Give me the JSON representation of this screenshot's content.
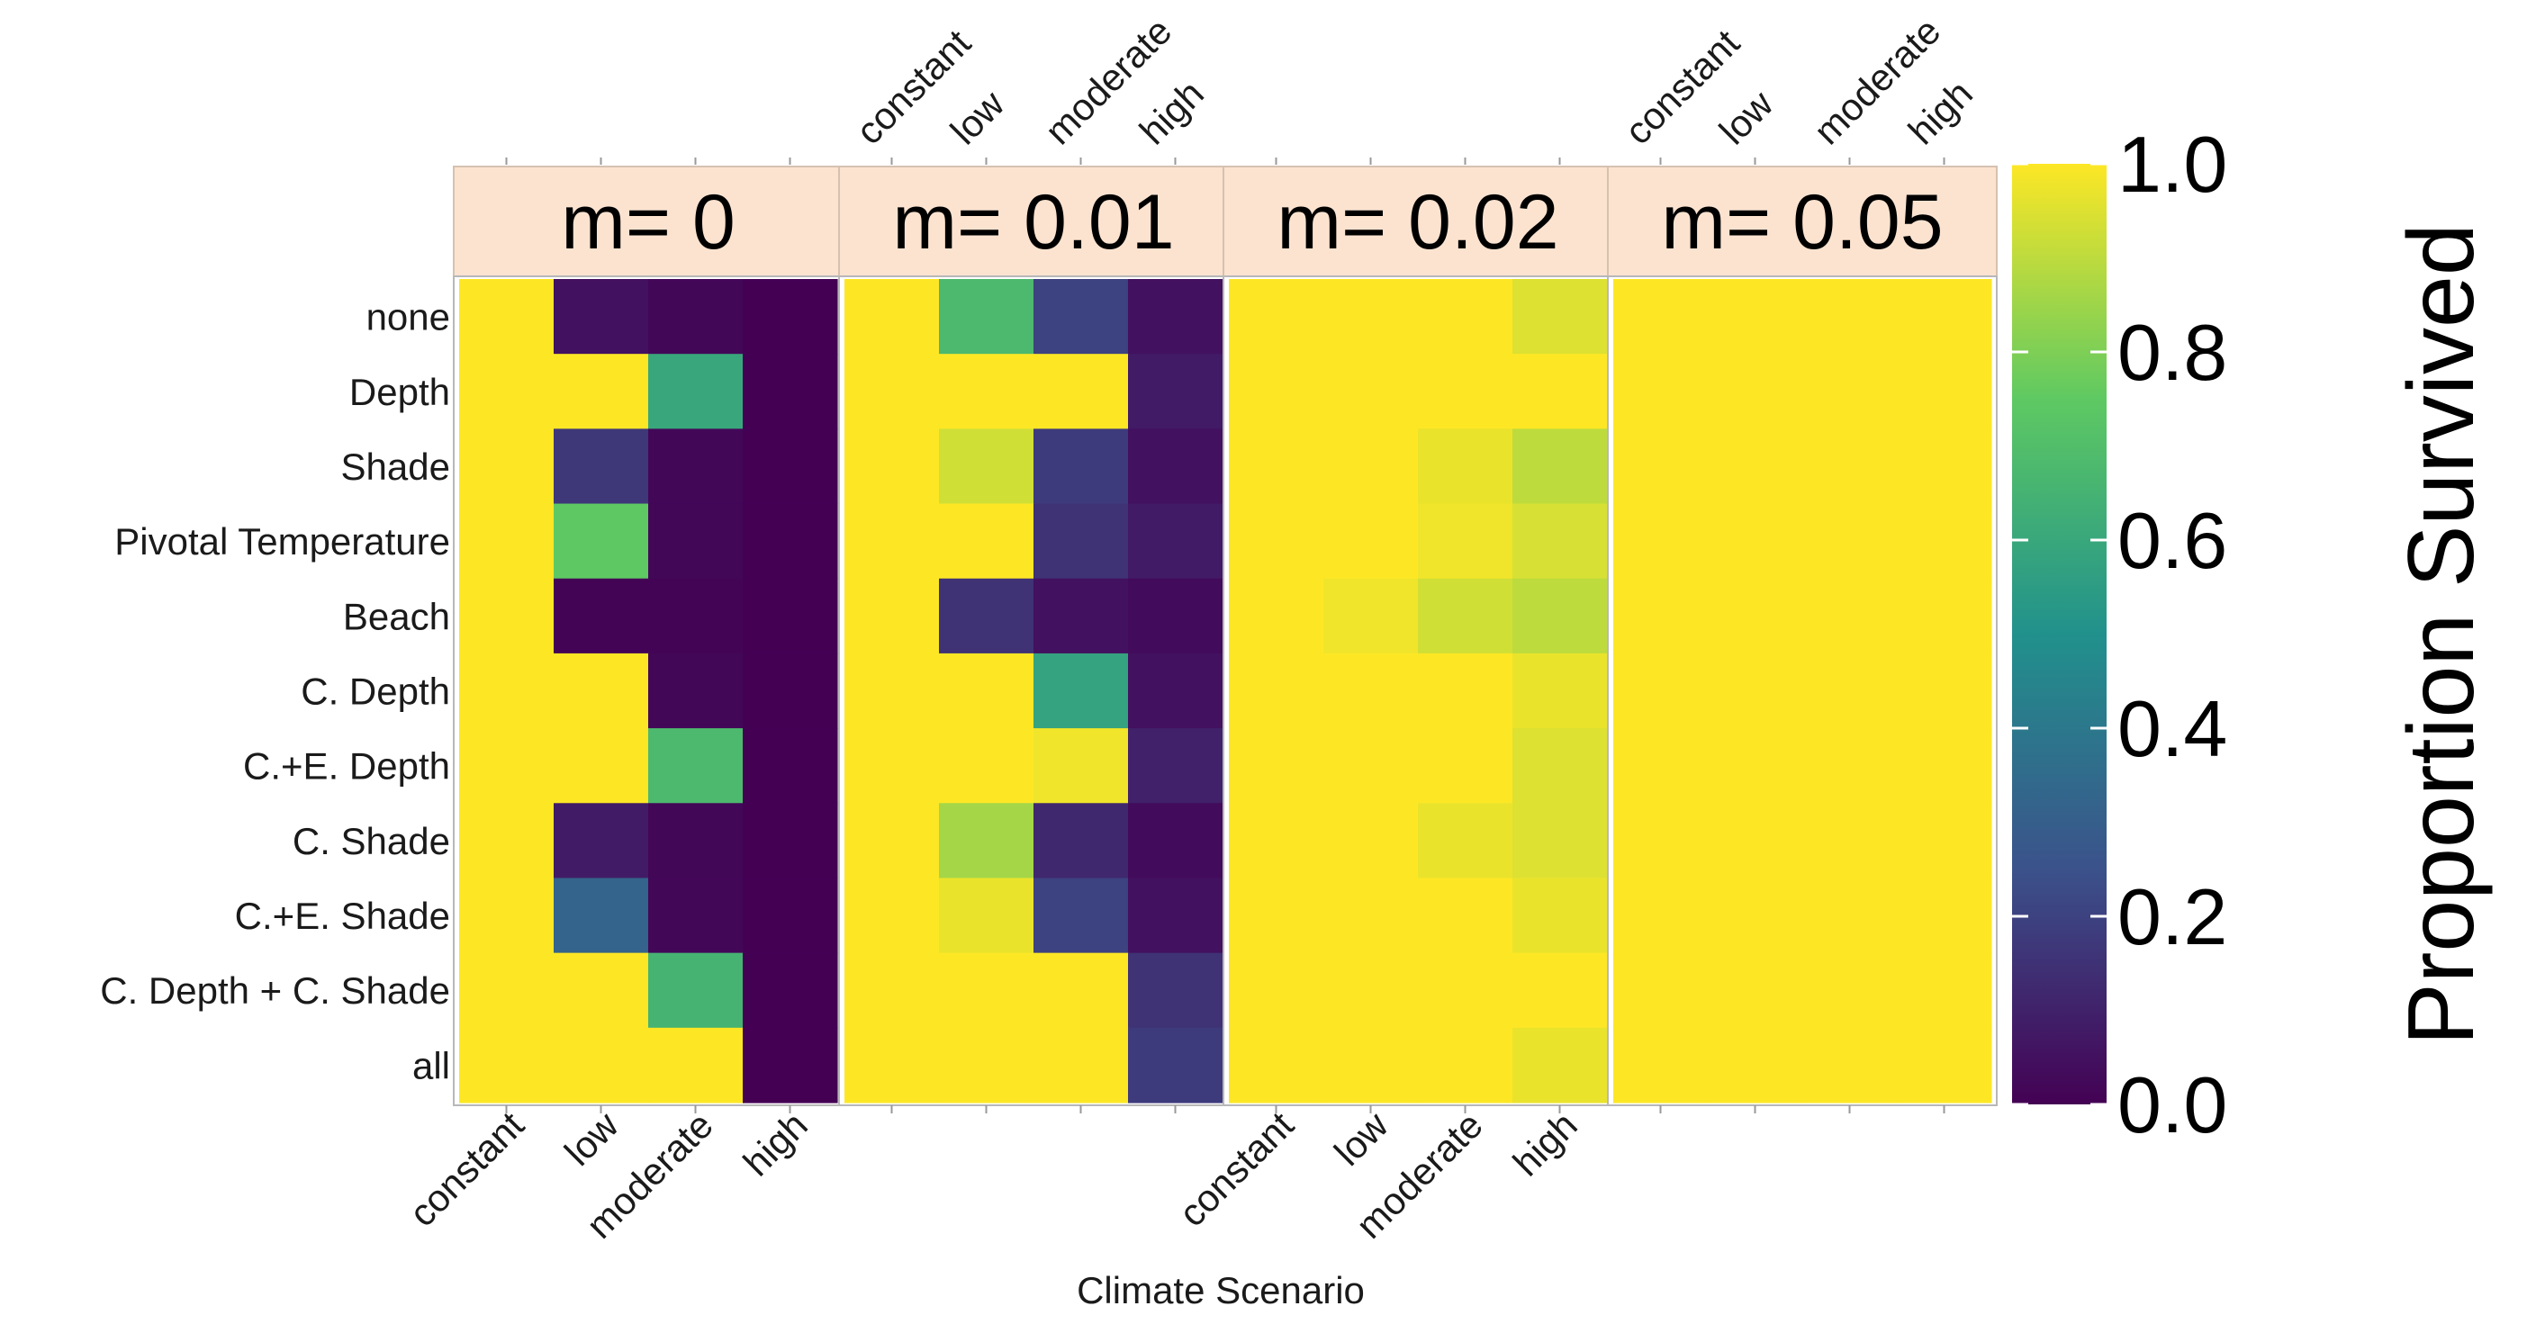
{
  "chart_data": {
    "type": "heatmap",
    "title": "",
    "xlabel": "Climate Scenario",
    "legend_title": "Proportion Survived",
    "legend_ticks": [
      "0.0",
      "0.2",
      "0.4",
      "0.6",
      "0.8",
      "1.0"
    ],
    "value_range": [
      0,
      1
    ],
    "colormap": "viridis",
    "columns": [
      "constant",
      "low",
      "moderate",
      "high"
    ],
    "rows": [
      "none",
      "Depth",
      "Shade",
      "Pivotal Temperature",
      "Beach",
      "C. Depth",
      "C.+E. Depth",
      "C. Shade",
      "C.+E. Shade",
      "C. Depth + C. Shade",
      "all"
    ],
    "facets": [
      {
        "label": "m= 0",
        "values": [
          [
            1.0,
            0.05,
            0.02,
            0.0
          ],
          [
            1.0,
            1.0,
            0.6,
            0.0
          ],
          [
            1.0,
            0.17,
            0.02,
            0.0
          ],
          [
            1.0,
            0.75,
            0.02,
            0.0
          ],
          [
            1.0,
            0.01,
            0.01,
            0.0
          ],
          [
            1.0,
            1.0,
            0.02,
            0.0
          ],
          [
            1.0,
            1.0,
            0.68,
            0.0
          ],
          [
            1.0,
            0.08,
            0.02,
            0.0
          ],
          [
            1.0,
            0.32,
            0.02,
            0.0
          ],
          [
            1.0,
            1.0,
            0.65,
            0.0
          ],
          [
            1.0,
            1.0,
            1.0,
            0.0
          ]
        ]
      },
      {
        "label": "m= 0.01",
        "values": [
          [
            1.0,
            0.68,
            0.2,
            0.05
          ],
          [
            1.0,
            1.0,
            1.0,
            0.08
          ],
          [
            1.0,
            0.93,
            0.18,
            0.05
          ],
          [
            1.0,
            1.0,
            0.15,
            0.08
          ],
          [
            1.0,
            0.15,
            0.05,
            0.03
          ],
          [
            1.0,
            1.0,
            0.58,
            0.05
          ],
          [
            1.0,
            1.0,
            0.98,
            0.1
          ],
          [
            1.0,
            0.86,
            0.12,
            0.03
          ],
          [
            1.0,
            0.97,
            0.2,
            0.05
          ],
          [
            1.0,
            1.0,
            1.0,
            0.15
          ],
          [
            1.0,
            1.0,
            1.0,
            0.18
          ]
        ]
      },
      {
        "label": "m= 0.02",
        "values": [
          [
            1.0,
            1.0,
            1.0,
            0.95
          ],
          [
            1.0,
            1.0,
            1.0,
            1.0
          ],
          [
            1.0,
            1.0,
            0.97,
            0.9
          ],
          [
            1.0,
            1.0,
            0.98,
            0.94
          ],
          [
            1.0,
            0.98,
            0.93,
            0.9
          ],
          [
            1.0,
            1.0,
            1.0,
            0.97
          ],
          [
            1.0,
            1.0,
            1.0,
            0.95
          ],
          [
            1.0,
            1.0,
            0.97,
            0.95
          ],
          [
            1.0,
            1.0,
            1.0,
            0.97
          ],
          [
            1.0,
            1.0,
            1.0,
            1.0
          ],
          [
            1.0,
            1.0,
            1.0,
            0.97
          ]
        ]
      },
      {
        "label": "m= 0.05",
        "values": [
          [
            1.0,
            1.0,
            1.0,
            1.0
          ],
          [
            1.0,
            1.0,
            1.0,
            1.0
          ],
          [
            1.0,
            1.0,
            1.0,
            1.0
          ],
          [
            1.0,
            1.0,
            1.0,
            1.0
          ],
          [
            1.0,
            1.0,
            1.0,
            1.0
          ],
          [
            1.0,
            1.0,
            1.0,
            1.0
          ],
          [
            1.0,
            1.0,
            1.0,
            1.0
          ],
          [
            1.0,
            1.0,
            1.0,
            1.0
          ],
          [
            1.0,
            1.0,
            1.0,
            1.0
          ],
          [
            1.0,
            1.0,
            1.0,
            1.0
          ],
          [
            1.0,
            1.0,
            1.0,
            1.0
          ]
        ]
      }
    ]
  },
  "colors": {
    "strip_background": "#fbe3d0",
    "panel_border": "#b8b8b8",
    "viridis_stops": [
      "#440154",
      "#3b528b",
      "#21918c",
      "#5ec962",
      "#fde725"
    ]
  }
}
